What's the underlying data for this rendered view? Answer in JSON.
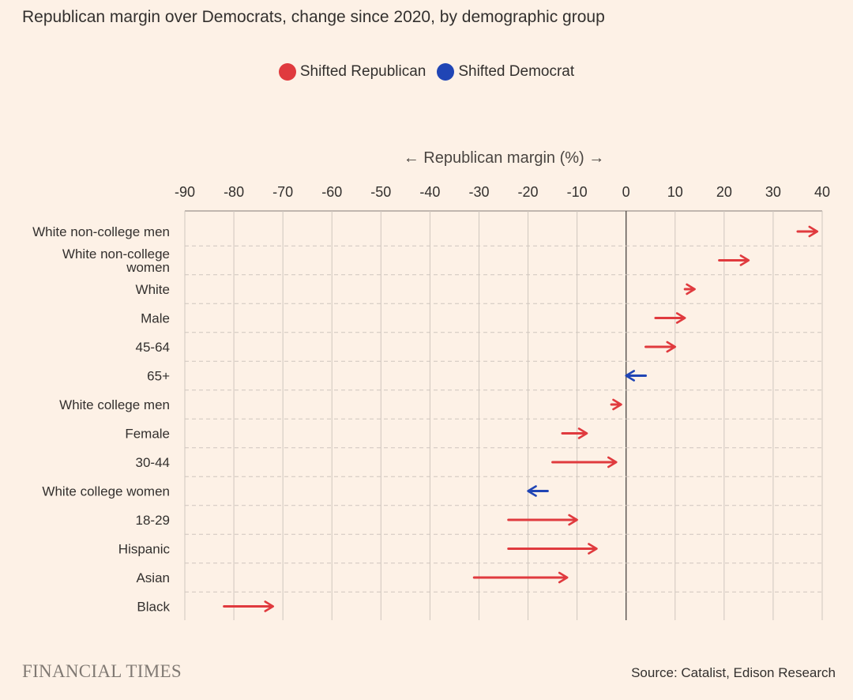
{
  "title": "Republican margin over Democrats, change since 2020, by demographic group",
  "legend": [
    {
      "label": "Shifted Republican",
      "color": "#e03a3e"
    },
    {
      "label": "Shifted Democrat",
      "color": "#2045b5"
    }
  ],
  "footer": {
    "brand": "FINANCIAL TIMES",
    "source": "Source: Catalist, Edison Research"
  },
  "chart_data": {
    "type": "arrow",
    "xlabel": "← Republican margin (%) →",
    "xlim": [
      -90,
      40
    ],
    "xticks": [
      -90,
      -80,
      -70,
      -60,
      -50,
      -40,
      -30,
      -20,
      -10,
      0,
      10,
      20,
      30,
      40
    ],
    "grid": true,
    "legend_position": "top-center",
    "colors": {
      "republican": "#e03a3e",
      "democrat": "#2045b5"
    },
    "rows": [
      {
        "label": [
          "White non-college men"
        ],
        "from": 35,
        "to": 39
      },
      {
        "label": [
          "White non-college",
          "women"
        ],
        "from": 19,
        "to": 25
      },
      {
        "label": [
          "White"
        ],
        "from": 12,
        "to": 14
      },
      {
        "label": [
          "Male"
        ],
        "from": 6,
        "to": 12
      },
      {
        "label": [
          "45-64"
        ],
        "from": 4,
        "to": 10
      },
      {
        "label": [
          "65+"
        ],
        "from": 4,
        "to": 0
      },
      {
        "label": [
          "White college men"
        ],
        "from": -3,
        "to": -1
      },
      {
        "label": [
          "Female"
        ],
        "from": -13,
        "to": -8
      },
      {
        "label": [
          "30-44"
        ],
        "from": -15,
        "to": -2
      },
      {
        "label": [
          "White college women"
        ],
        "from": -16,
        "to": -20
      },
      {
        "label": [
          "18-29"
        ],
        "from": -24,
        "to": -10
      },
      {
        "label": [
          "Hispanic"
        ],
        "from": -24,
        "to": -6
      },
      {
        "label": [
          "Asian"
        ],
        "from": -31,
        "to": -12
      },
      {
        "label": [
          "Black"
        ],
        "from": -82,
        "to": -72
      }
    ]
  }
}
